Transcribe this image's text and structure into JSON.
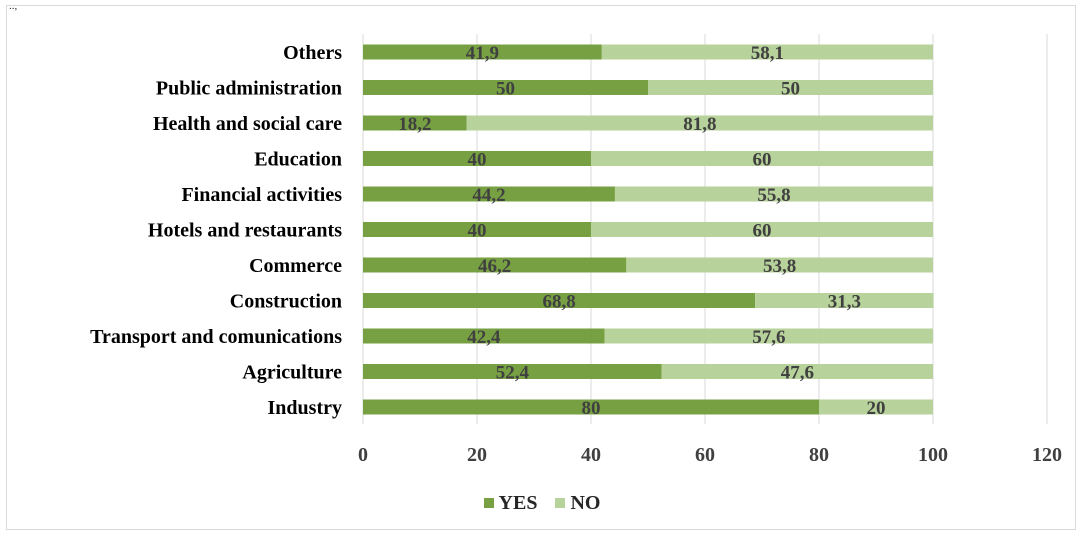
{
  "corner_text": "..,",
  "colors": {
    "yes": "#77a043",
    "no": "#b7d29a",
    "grid": "#d9d9d9",
    "text": "#262626",
    "label": "#404040"
  },
  "legend": {
    "yes_label": "YES",
    "no_label": "NO"
  },
  "chart_data": {
    "type": "bar",
    "orientation": "horizontal",
    "stacked": true,
    "categories": [
      "Others",
      "Public administration",
      "Health and social care",
      "Education",
      "Financial activities",
      "Hotels and restaurants",
      "Commerce",
      "Construction",
      "Transport and comunications",
      "Agriculture",
      "Industry"
    ],
    "series": [
      {
        "name": "YES",
        "values": [
          41.9,
          50,
          18.2,
          40,
          44.2,
          40,
          46.2,
          68.8,
          42.4,
          52.4,
          80
        ],
        "labels": [
          "41,9",
          "50",
          "18,2",
          "40",
          "44,2",
          "40",
          "46,2",
          "68,8",
          "42,4",
          "52,4",
          "80"
        ]
      },
      {
        "name": "NO",
        "values": [
          58.1,
          50,
          81.8,
          60,
          55.8,
          60,
          53.8,
          31.3,
          57.6,
          47.6,
          20
        ],
        "labels": [
          "58,1",
          "50",
          "81,8",
          "60",
          "55,8",
          "60",
          "53,8",
          "31,3",
          "57,6",
          "47,6",
          "20"
        ]
      }
    ],
    "xlim": [
      0,
      120
    ],
    "xticks": [
      "0",
      "20",
      "40",
      "60",
      "80",
      "100",
      "120"
    ],
    "grid": true,
    "legend_position": "bottom"
  }
}
